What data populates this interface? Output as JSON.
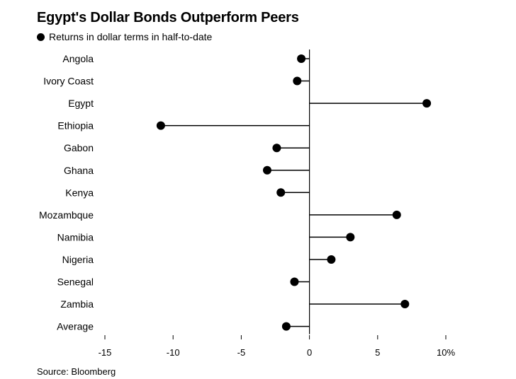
{
  "header": {
    "title": "Egypt's Dollar Bonds Outperform Peers"
  },
  "footer": {
    "source": "Source: Bloomberg"
  },
  "chart_data": {
    "type": "lollipop",
    "orientation": "horizontal",
    "title": "Egypt's Dollar Bonds Outperform Peers",
    "categories": [
      "Angola",
      "Ivory Coast",
      "Egypt",
      "Ethiopia",
      "Gabon",
      "Ghana",
      "Kenya",
      "Mozambque",
      "Namibia",
      "Nigeria",
      "Senegal",
      "Zambia",
      "Average"
    ],
    "series": [
      {
        "name": "Returns in dollar terms in half-to-date",
        "values": [
          -0.6,
          -0.9,
          8.6,
          -10.9,
          -2.4,
          -3.1,
          -2.1,
          6.4,
          3.0,
          1.6,
          -1.1,
          7.0,
          -1.7
        ]
      }
    ],
    "xlim": [
      -15,
      10
    ],
    "xticks": [
      -15,
      -10,
      -5,
      0,
      5,
      10
    ],
    "xtick_labels": [
      "-15",
      "-10",
      "-5",
      "0",
      "5",
      "10%"
    ],
    "grid": false,
    "legend_position": "top-left",
    "marker_color": "#000000",
    "line_color": "#000000"
  }
}
